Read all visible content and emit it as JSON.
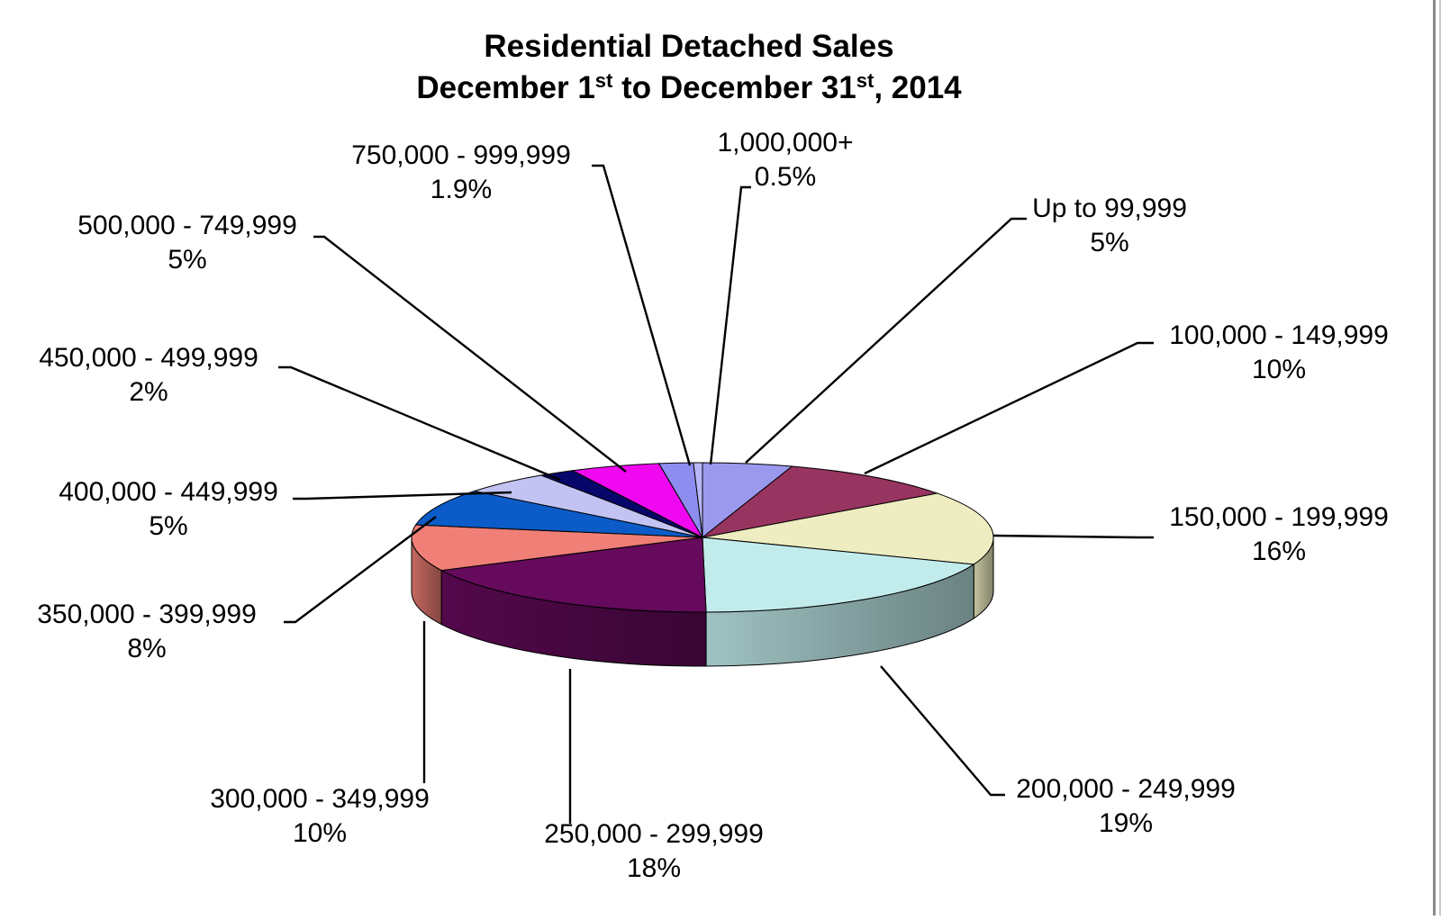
{
  "chart_data": {
    "type": "pie",
    "title_line1": "Residential Detached Sales",
    "title_line2_parts": [
      "December 1",
      "st",
      " to December 31",
      "st",
      ", 2014"
    ],
    "slices": [
      {
        "label": "Up to 99,999",
        "value_text": "5%",
        "value": 5,
        "color": "#9b99ee"
      },
      {
        "label": "100,000 - 149,999",
        "value_text": "10%",
        "value": 10,
        "color": "#97345f"
      },
      {
        "label": "150,000 - 199,999",
        "value_text": "16%",
        "value": 16,
        "color": "#eeedc1"
      },
      {
        "label": "200,000 - 249,999",
        "value_text": "19%",
        "value": 19,
        "color": "#c2ecec"
      },
      {
        "label": "250,000 - 299,999",
        "value_text": "18%",
        "value": 18,
        "color": "#650a5c"
      },
      {
        "label": "300,000 - 349,999",
        "value_text": "10%",
        "value": 10,
        "color": "#f07f77"
      },
      {
        "label": "350,000 - 399,999",
        "value_text": "8%",
        "value": 8,
        "color": "#0b5cc8"
      },
      {
        "label": "400,000 - 449,999",
        "value_text": "5%",
        "value": 5,
        "color": "#c3c3f3"
      },
      {
        "label": "450,000 - 499,999",
        "value_text": "2%",
        "value": 2,
        "color": "#07066b"
      },
      {
        "label": "500,000 - 749,999",
        "value_text": "5%",
        "value": 5,
        "color": "#f008f0"
      },
      {
        "label": "750,000 - 999,999",
        "value_text": "1.9%",
        "value": 1.9,
        "color": "#8d8df0"
      },
      {
        "label": "1,000,000+",
        "value_text": "0.5%",
        "value": 0.5,
        "color": "#b8b8f8"
      }
    ]
  }
}
